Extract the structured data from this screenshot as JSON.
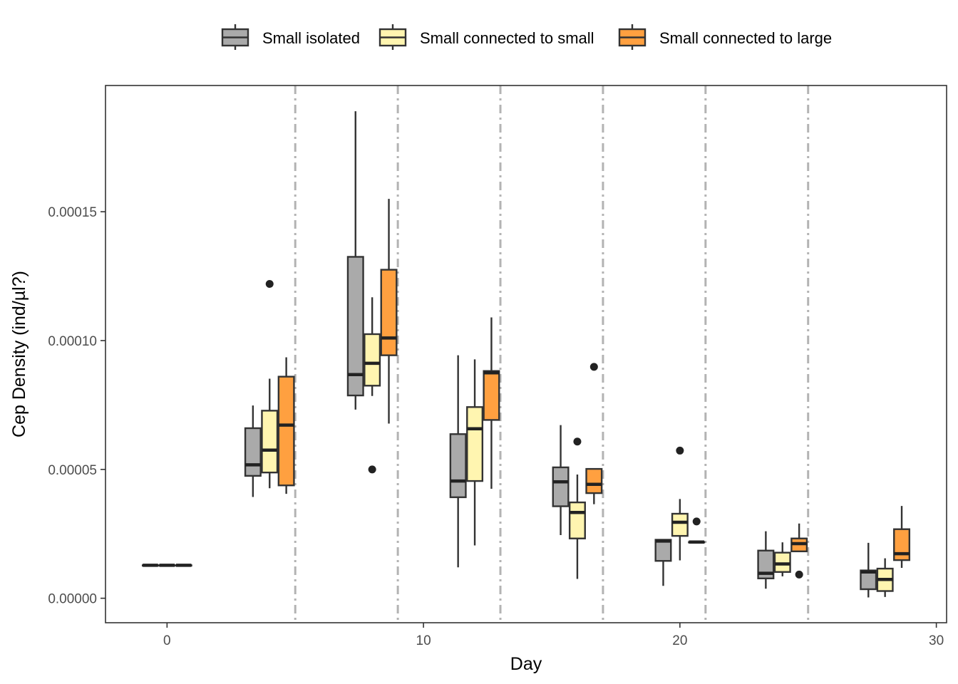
{
  "chart_data": {
    "type": "box",
    "xlabel": "Day",
    "ylabel": "Cep Density (ind/µl?)",
    "xlim": [
      -2.4,
      30.4
    ],
    "ylim": [
      -9.5e-06,
      0.000199
    ],
    "x_ticks": [
      0,
      10,
      20,
      30
    ],
    "x_tick_labels": [
      "0",
      "10",
      "20",
      "30"
    ],
    "y_ticks": [
      0,
      5e-05,
      0.0001,
      0.00015
    ],
    "y_tick_labels": [
      "0.00000",
      "0.00005",
      "0.00010",
      "0.00015"
    ],
    "grid": false,
    "legend_position": "top",
    "vlines": {
      "x": [
        5,
        9,
        13,
        17,
        21,
        25
      ],
      "style": "dashed",
      "color": "#b3b3b3"
    },
    "series": [
      {
        "name": "Small isolated",
        "color": "#aaaaaa",
        "boxes": [
          {
            "x": -0.65,
            "q1": 1.28e-05,
            "median": 1.28e-05,
            "q3": 1.28e-05,
            "lo": 1.28e-05,
            "hi": 1.28e-05,
            "outliers": []
          },
          {
            "x": 3.35,
            "q1": 4.75e-05,
            "median": 5.18e-05,
            "q3": 6.6e-05,
            "lo": 3.93e-05,
            "hi": 7.48e-05,
            "outliers": []
          },
          {
            "x": 7.35,
            "q1": 7.87e-05,
            "median": 8.68e-05,
            "q3": 0.0001325,
            "lo": 7.32e-05,
            "hi": 0.000189,
            "outliers": []
          },
          {
            "x": 11.35,
            "q1": 3.92e-05,
            "median": 4.55e-05,
            "q3": 6.37e-05,
            "lo": 1.2e-05,
            "hi": 9.43e-05,
            "outliers": []
          },
          {
            "x": 15.35,
            "q1": 3.57e-05,
            "median": 4.52e-05,
            "q3": 5.08e-05,
            "lo": 2.45e-05,
            "hi": 6.72e-05,
            "outliers": []
          },
          {
            "x": 19.35,
            "q1": 1.45e-05,
            "median": 2.22e-05,
            "q3": 2.27e-05,
            "lo": 4.8e-06,
            "hi": 2.3e-05,
            "outliers": []
          },
          {
            "x": 23.35,
            "q1": 7.7e-06,
            "median": 9.7e-06,
            "q3": 1.85e-05,
            "lo": 3.7e-06,
            "hi": 2.6e-05,
            "outliers": []
          },
          {
            "x": 27.35,
            "q1": 3.5e-06,
            "median": 1.02e-05,
            "q3": 1.08e-05,
            "lo": 3e-07,
            "hi": 2.15e-05,
            "outliers": []
          }
        ]
      },
      {
        "name": "Small connected to small",
        "color": "#fff5b0",
        "boxes": [
          {
            "x": 0,
            "q1": 1.28e-05,
            "median": 1.28e-05,
            "q3": 1.28e-05,
            "lo": 1.28e-05,
            "hi": 1.28e-05,
            "outliers": []
          },
          {
            "x": 4,
            "q1": 4.88e-05,
            "median": 5.75e-05,
            "q3": 7.28e-05,
            "lo": 4.27e-05,
            "hi": 8.52e-05,
            "outliers": [
              0.000122
            ]
          },
          {
            "x": 8,
            "q1": 8.25e-05,
            "median": 9.12e-05,
            "q3": 0.0001025,
            "lo": 7.85e-05,
            "hi": 0.0001168,
            "outliers": [
              5e-05
            ]
          },
          {
            "x": 12,
            "q1": 4.55e-05,
            "median": 6.58e-05,
            "q3": 7.42e-05,
            "lo": 2.05e-05,
            "hi": 9.27e-05,
            "outliers": []
          },
          {
            "x": 16,
            "q1": 2.32e-05,
            "median": 3.33e-05,
            "q3": 3.72e-05,
            "lo": 7.5e-06,
            "hi": 4.8e-05,
            "outliers": [
              6.08e-05
            ]
          },
          {
            "x": 20,
            "q1": 2.42e-05,
            "median": 2.95e-05,
            "q3": 3.28e-05,
            "lo": 1.47e-05,
            "hi": 3.85e-05,
            "outliers": [
              5.73e-05
            ]
          },
          {
            "x": 24,
            "q1": 1.02e-05,
            "median": 1.33e-05,
            "q3": 1.77e-05,
            "lo": 8.5e-06,
            "hi": 2.17e-05,
            "outliers": []
          },
          {
            "x": 28,
            "q1": 2.8e-06,
            "median": 7.3e-06,
            "q3": 1.15e-05,
            "lo": 5e-07,
            "hi": 1.55e-05,
            "outliers": []
          }
        ]
      },
      {
        "name": "Small connected to large",
        "color": "#ffa040",
        "boxes": [
          {
            "x": 0.65,
            "q1": 1.28e-05,
            "median": 1.28e-05,
            "q3": 1.28e-05,
            "lo": 1.28e-05,
            "hi": 1.28e-05,
            "outliers": []
          },
          {
            "x": 4.65,
            "q1": 4.38e-05,
            "median": 6.72e-05,
            "q3": 8.6e-05,
            "lo": 4.05e-05,
            "hi": 9.35e-05,
            "outliers": []
          },
          {
            "x": 8.65,
            "q1": 9.43e-05,
            "median": 0.000101,
            "q3": 0.0001275,
            "lo": 6.78e-05,
            "hi": 0.000155,
            "outliers": []
          },
          {
            "x": 12.65,
            "q1": 6.92e-05,
            "median": 8.75e-05,
            "q3": 8.82e-05,
            "lo": 4.25e-05,
            "hi": 0.000109,
            "outliers": []
          },
          {
            "x": 16.65,
            "q1": 4.08e-05,
            "median": 4.42e-05,
            "q3": 5.02e-05,
            "lo": 3.65e-05,
            "hi": 5.02e-05,
            "outliers": [
              8.98e-05
            ]
          },
          {
            "x": 20.65,
            "q1": 2.18e-05,
            "median": 2.18e-05,
            "q3": 2.18e-05,
            "lo": 2.18e-05,
            "hi": 2.18e-05,
            "outliers": [
              2.98e-05
            ]
          },
          {
            "x": 24.65,
            "q1": 1.82e-05,
            "median": 2.12e-05,
            "q3": 2.32e-05,
            "lo": 1.82e-05,
            "hi": 2.9e-05,
            "outliers": [
              9.2e-06
            ]
          },
          {
            "x": 28.65,
            "q1": 1.48e-05,
            "median": 1.73e-05,
            "q3": 2.68e-05,
            "lo": 1.18e-05,
            "hi": 3.58e-05,
            "outliers": []
          }
        ]
      }
    ]
  }
}
